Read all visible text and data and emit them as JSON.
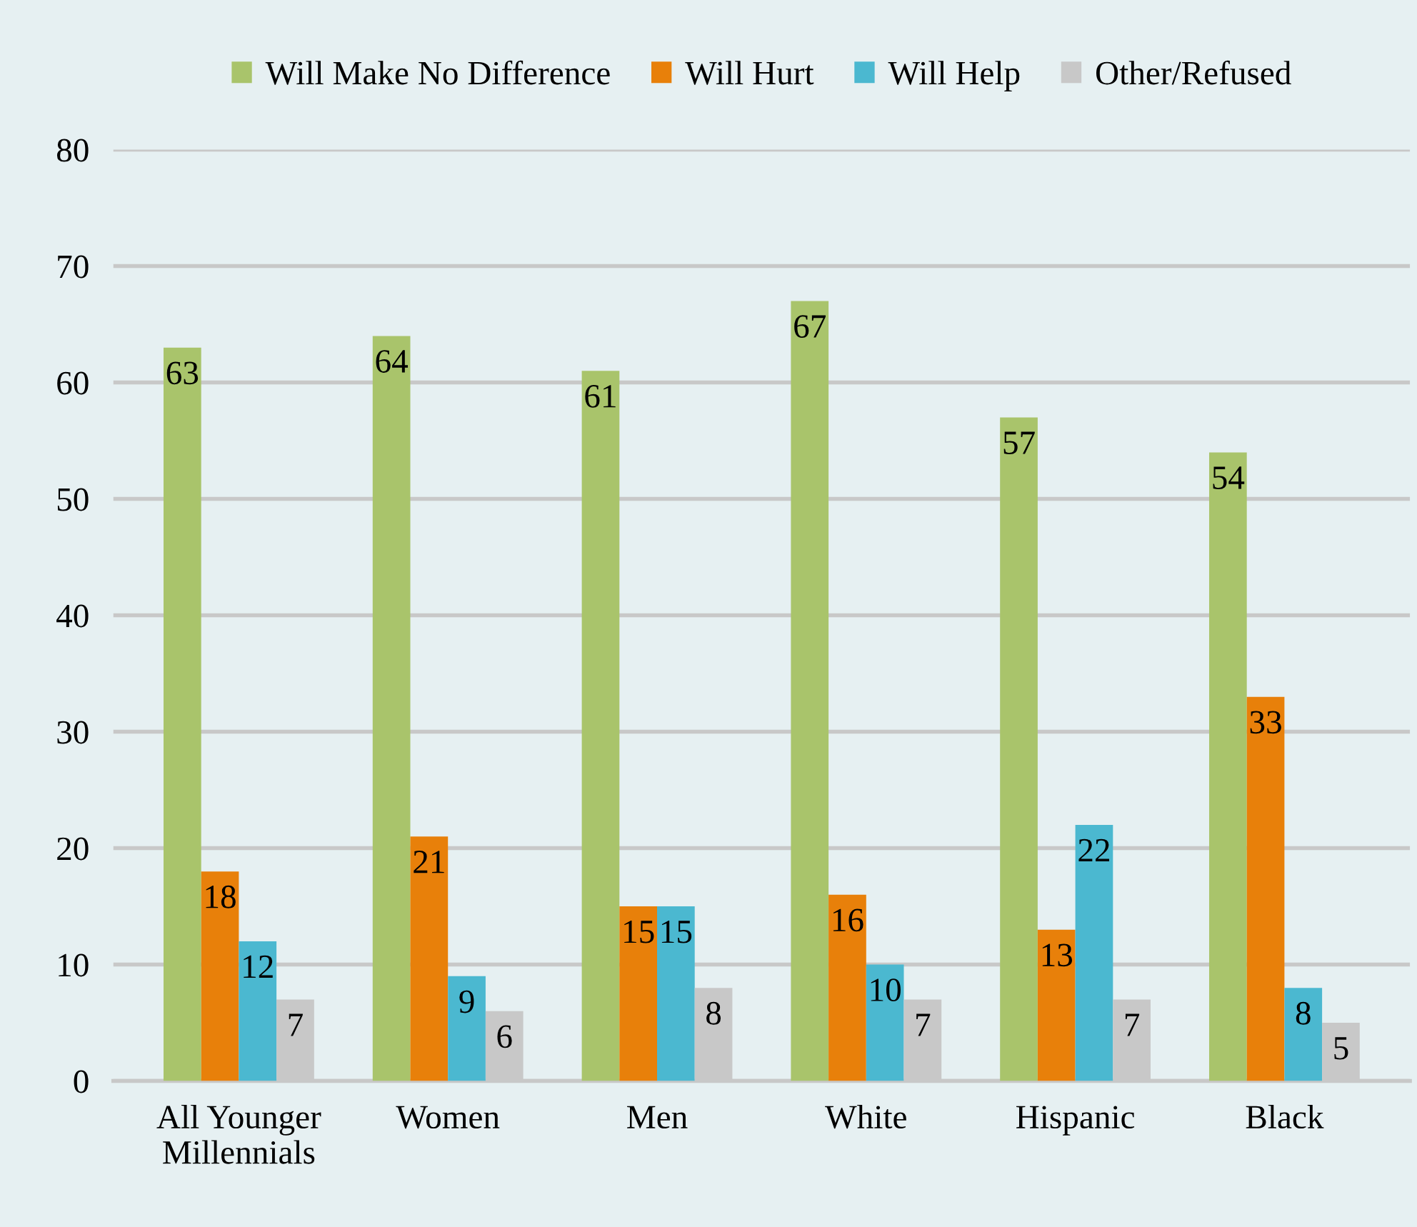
{
  "chart_data": {
    "type": "bar",
    "categories": [
      "All Younger\nMillennials",
      "Women",
      "Men",
      "White",
      "Hispanic",
      "Black"
    ],
    "series": [
      {
        "name": "Will Make No Difference",
        "color": "#a9c46b",
        "values": [
          63,
          64,
          61,
          67,
          57,
          54
        ]
      },
      {
        "name": "Will Hurt",
        "color": "#e8800a",
        "values": [
          18,
          21,
          15,
          16,
          13,
          33
        ]
      },
      {
        "name": "Will Help",
        "color": "#4bb8d0",
        "values": [
          12,
          9,
          15,
          10,
          22,
          8
        ]
      },
      {
        "name": "Other/Refused",
        "color": "#c8c8c8",
        "values": [
          7,
          6,
          8,
          7,
          7,
          5
        ]
      }
    ],
    "ylim": [
      0,
      80
    ],
    "yticks": [
      0,
      10,
      20,
      30,
      40,
      50,
      60,
      70,
      80
    ],
    "grid": "y",
    "legend": "top",
    "data_labels": true
  }
}
